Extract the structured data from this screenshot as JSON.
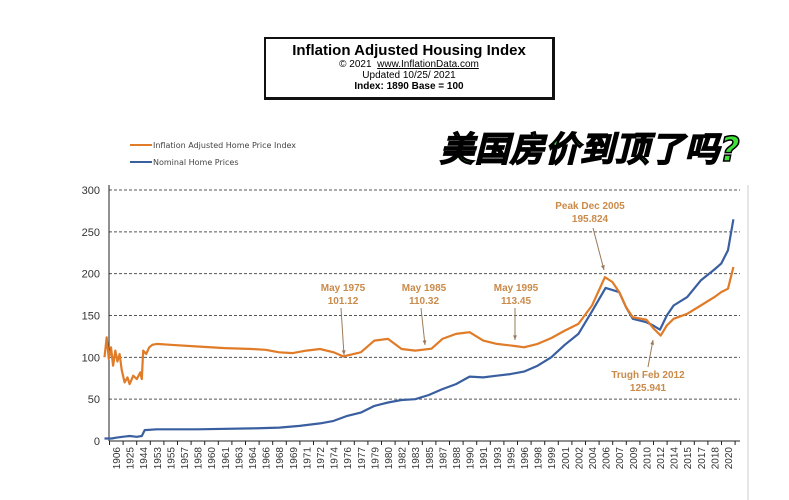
{
  "header": {
    "title": "Inflation Adjusted Housing Index",
    "copyright": "© 2021",
    "website": "www.InflationData.com",
    "updated": "Updated  10/25/ 2021",
    "index_note": "Index: 1890 Base = 100"
  },
  "overlay_caption": "美国房价到顶了吗?",
  "colors": {
    "inflation_adjusted": "#e07b28",
    "nominal": "#3a5fa0",
    "annotation": "#c98a4a",
    "grid": "#555555"
  },
  "chart_data": {
    "type": "line",
    "title": "Inflation Adjusted Housing Index",
    "xlabel": "",
    "ylabel": "",
    "ylim": [
      0,
      300
    ],
    "yticks": [
      0,
      50,
      100,
      150,
      200,
      250,
      300
    ],
    "grid": "horizontal dashed",
    "legend_placement": "top-left",
    "x_tick_labels": [
      "1906",
      "1925",
      "1944",
      "1953",
      "1955",
      "1957",
      "1958",
      "1960",
      "1961",
      "1963",
      "1964",
      "1966",
      "1968",
      "1969",
      "1971",
      "1972",
      "1974",
      "1976",
      "1977",
      "1979",
      "1980",
      "1982",
      "1983",
      "1985",
      "1987",
      "1988",
      "1990",
      "1991",
      "1993",
      "1995",
      "1996",
      "1998",
      "1999",
      "2001",
      "2002",
      "2004",
      "2006",
      "2007",
      "2009",
      "2010",
      "2012",
      "2014",
      "2015",
      "2017",
      "2018",
      "2020"
    ],
    "series": [
      {
        "name": "Inflation Adjusted Home Price Index",
        "color": "#e07b28",
        "points": [
          [
            1890,
            100
          ],
          [
            1893,
            124
          ],
          [
            1896,
            98
          ],
          [
            1899,
            112
          ],
          [
            1902,
            90
          ],
          [
            1905,
            108
          ],
          [
            1908,
            95
          ],
          [
            1911,
            104
          ],
          [
            1914,
            85
          ],
          [
            1918,
            70
          ],
          [
            1922,
            76
          ],
          [
            1925,
            68
          ],
          [
            1930,
            78
          ],
          [
            1935,
            74
          ],
          [
            1940,
            82
          ],
          [
            1942,
            74
          ],
          [
            1944,
            108
          ],
          [
            1946,
            104
          ],
          [
            1948,
            112
          ],
          [
            1950,
            115
          ],
          [
            1953,
            116
          ],
          [
            1955,
            115
          ],
          [
            1958,
            113
          ],
          [
            1961,
            111
          ],
          [
            1964,
            110
          ],
          [
            1966,
            109
          ],
          [
            1968,
            106
          ],
          [
            1969,
            105
          ],
          [
            1971,
            108
          ],
          [
            1972,
            110
          ],
          [
            1974,
            106
          ],
          [
            1975.4,
            101.12
          ],
          [
            1977,
            106
          ],
          [
            1979,
            120
          ],
          [
            1980,
            122
          ],
          [
            1982,
            110
          ],
          [
            1983,
            108
          ],
          [
            1985.4,
            110.32
          ],
          [
            1987,
            122
          ],
          [
            1988,
            128
          ],
          [
            1990,
            130
          ],
          [
            1991,
            120
          ],
          [
            1993,
            116
          ],
          [
            1995.4,
            113.45
          ],
          [
            1996,
            112
          ],
          [
            1998,
            116
          ],
          [
            1999,
            123
          ],
          [
            2001,
            132
          ],
          [
            2002,
            140
          ],
          [
            2004,
            162
          ],
          [
            2005.9,
            195.824
          ],
          [
            2006.5,
            190
          ],
          [
            2007,
            178
          ],
          [
            2008,
            160
          ],
          [
            2009,
            148
          ],
          [
            2010,
            145
          ],
          [
            2011,
            135
          ],
          [
            2012.1,
            125.941
          ],
          [
            2013,
            138
          ],
          [
            2014,
            146
          ],
          [
            2015,
            152
          ],
          [
            2017,
            162
          ],
          [
            2018,
            172
          ],
          [
            2019,
            178
          ],
          [
            2020,
            182
          ],
          [
            2020.8,
            208
          ]
        ]
      },
      {
        "name": "Nominal Home Prices",
        "color": "#3a5fa0",
        "points": [
          [
            1890,
            3
          ],
          [
            1900,
            3
          ],
          [
            1906,
            4
          ],
          [
            1915,
            5
          ],
          [
            1925,
            6
          ],
          [
            1935,
            5
          ],
          [
            1942,
            6
          ],
          [
            1945,
            13
          ],
          [
            1953,
            14
          ],
          [
            1958,
            14
          ],
          [
            1964,
            15
          ],
          [
            1968,
            16
          ],
          [
            1970,
            18
          ],
          [
            1972,
            21
          ],
          [
            1974,
            24
          ],
          [
            1976,
            30
          ],
          [
            1977,
            34
          ],
          [
            1979,
            42
          ],
          [
            1980,
            46
          ],
          [
            1982,
            49
          ],
          [
            1983,
            50
          ],
          [
            1985,
            55
          ],
          [
            1987,
            62
          ],
          [
            1988,
            68
          ],
          [
            1990,
            77
          ],
          [
            1991,
            76
          ],
          [
            1993,
            78
          ],
          [
            1995,
            80
          ],
          [
            1996,
            83
          ],
          [
            1998,
            90
          ],
          [
            1999,
            100
          ],
          [
            2001,
            115
          ],
          [
            2002,
            128
          ],
          [
            2004,
            155
          ],
          [
            2006,
            183
          ],
          [
            2007,
            178
          ],
          [
            2008,
            160
          ],
          [
            2009,
            146
          ],
          [
            2010,
            142
          ],
          [
            2011,
            138
          ],
          [
            2012,
            133
          ],
          [
            2013,
            150
          ],
          [
            2014,
            162
          ],
          [
            2015,
            172
          ],
          [
            2017,
            192
          ],
          [
            2018,
            205
          ],
          [
            2019,
            212
          ],
          [
            2020,
            228
          ],
          [
            2020.8,
            265
          ]
        ]
      }
    ],
    "annotations": [
      {
        "label": "May 1975",
        "value": "101.12"
      },
      {
        "label": "May 1985",
        "value": "110.32"
      },
      {
        "label": "May 1995",
        "value": "113.45"
      },
      {
        "label": "Peak Dec 2005",
        "value": "195.824"
      },
      {
        "label": "Trugh Feb 2012",
        "value": "125.941"
      }
    ]
  }
}
